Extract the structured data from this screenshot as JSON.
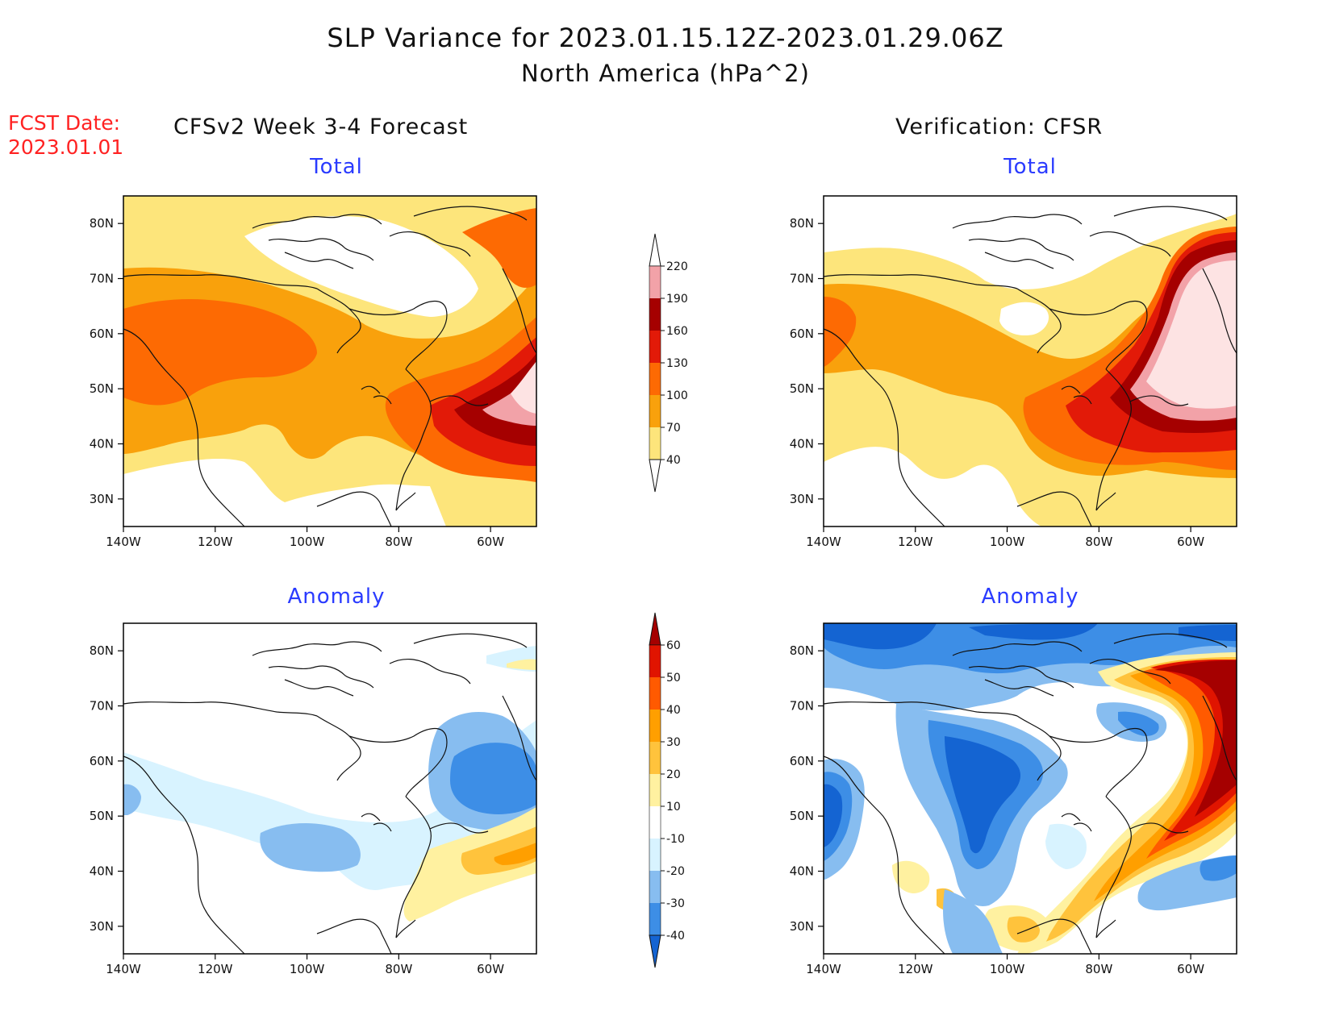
{
  "header": {
    "title": "SLP Variance for 2023.01.15.12Z-2023.01.29.06Z",
    "subtitle": "North America (hPa^2)",
    "fcst_label": "FCST Date:",
    "fcst_date": "2023.01.01",
    "left_column": "CFSv2 Week 3-4 Forecast",
    "right_column": "Verification: CFSR"
  },
  "panels": {
    "forecast_total": {
      "title": "Total"
    },
    "verification_total": {
      "title": "Total"
    },
    "forecast_anomaly": {
      "title": "Anomaly"
    },
    "verification_anomaly": {
      "title": "Anomaly"
    }
  },
  "axes": {
    "lat_labels": [
      "80N",
      "70N",
      "60N",
      "50N",
      "40N",
      "30N"
    ],
    "lat_values": [
      80,
      70,
      60,
      50,
      40,
      30
    ],
    "lon_labels": [
      "140W",
      "120W",
      "100W",
      "80W",
      "60W"
    ],
    "lon_values": [
      -140,
      -120,
      -100,
      -80,
      -60
    ],
    "lat_range": [
      25,
      85
    ],
    "lon_range": [
      -140,
      -50
    ]
  },
  "colorbars": {
    "total": {
      "levels": [
        "40",
        "70",
        "100",
        "130",
        "160",
        "190",
        "220"
      ],
      "colors": [
        "#fde57b",
        "#f9a10c",
        "#fd6a03",
        "#e21a08",
        "#a50000",
        "#f2a2a8",
        "#fde3e3"
      ]
    },
    "anomaly": {
      "levels": [
        "-40",
        "-30",
        "-20",
        "-10",
        "10",
        "20",
        "30",
        "40",
        "50",
        "60"
      ],
      "colors": [
        "#1464d2",
        "#3d8ee6",
        "#87bdf0",
        "#d8f3ff",
        "#ffffff",
        "#fff1a0",
        "#ffc33c",
        "#ff9f00",
        "#ff5a00",
        "#e01400",
        "#a50000"
      ]
    }
  }
}
